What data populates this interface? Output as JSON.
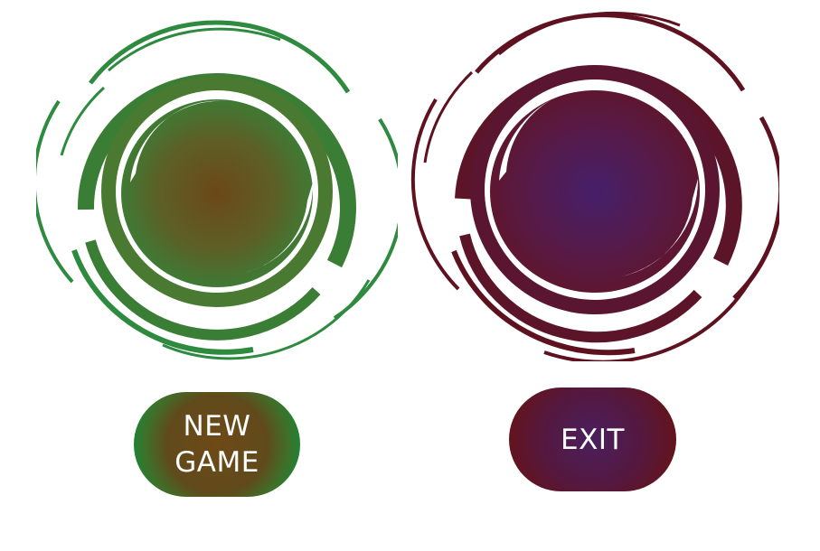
{
  "menu": {
    "new_game": {
      "line1": "NEW",
      "line2": "GAME"
    },
    "exit": {
      "label": "EXIT"
    }
  },
  "colors": {
    "green_swirl": "#2e8a3e",
    "green_core": "#6b4a18",
    "red_swirl": "#5e1220",
    "red_core": "#4a1f64"
  },
  "icons": {
    "left": "green-swirl-icon",
    "right": "red-swirl-icon"
  }
}
